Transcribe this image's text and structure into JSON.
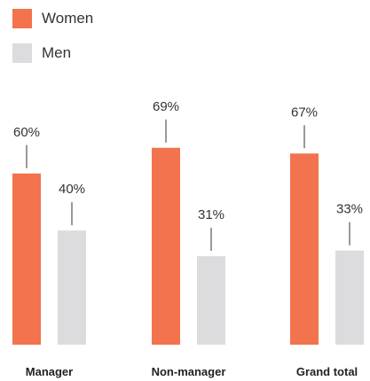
{
  "colors": {
    "women": "#f2734d",
    "men": "#dcdcde"
  },
  "chart_data": {
    "type": "bar",
    "categories": [
      "Manager",
      "Non-manager",
      "Grand total"
    ],
    "series": [
      {
        "name": "Women",
        "values": [
          60,
          69,
          67
        ],
        "labels": [
          "60%",
          "69%",
          "67%"
        ]
      },
      {
        "name": "Men",
        "values": [
          40,
          31,
          33
        ],
        "labels": [
          "40%",
          "31%",
          "33%"
        ]
      }
    ],
    "ylim": [
      0,
      100
    ],
    "legend": "top-left",
    "grid": false
  }
}
